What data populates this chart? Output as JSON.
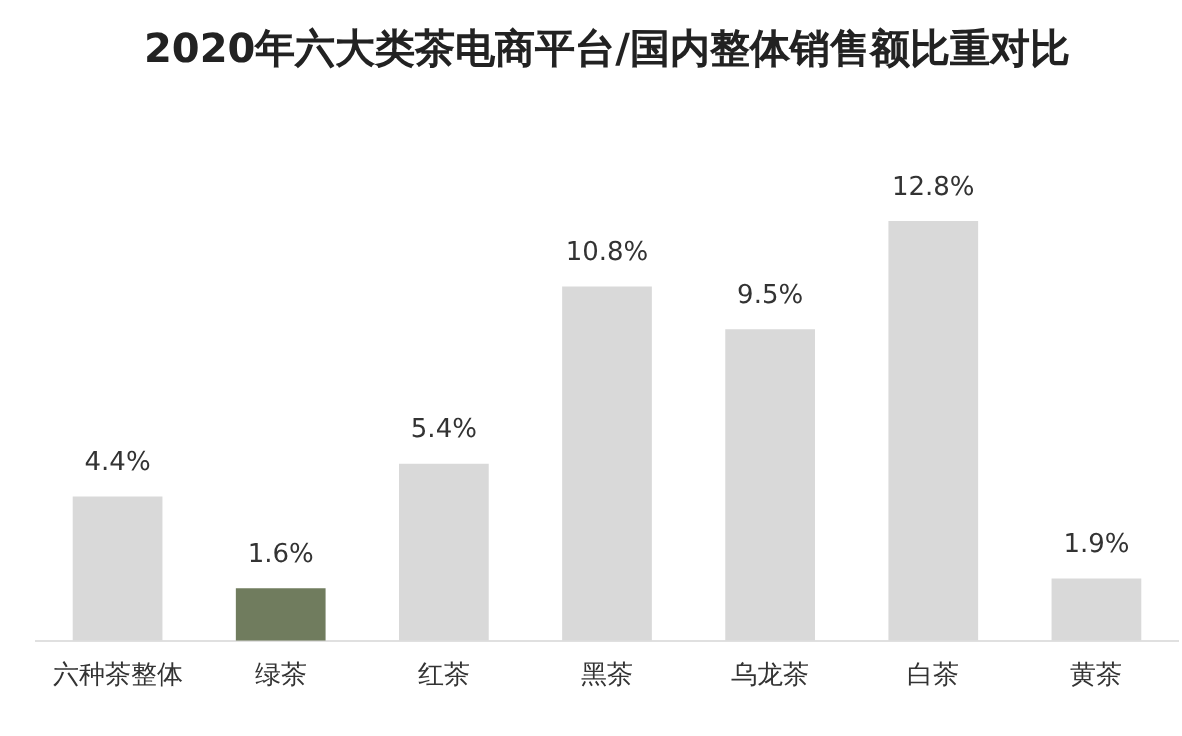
{
  "chart_data": {
    "type": "bar",
    "title": "2020年六大类茶电商平台/国内整体销售额比重对比",
    "categories": [
      "六种茶整体",
      "绿茶",
      "红茶",
      "黑茶",
      "乌龙茶",
      "白茶",
      "黄茶"
    ],
    "values": [
      4.4,
      1.6,
      5.4,
      10.8,
      9.5,
      12.8,
      1.9
    ],
    "colors": [
      "#d9d9d9",
      "#707c5e",
      "#d9d9d9",
      "#d9d9d9",
      "#d9d9d9",
      "#d9d9d9",
      "#d9d9d9"
    ],
    "value_labels": [
      "4.4%",
      "1.6%",
      "5.4%",
      "10.8%",
      "9.5%",
      "12.8%",
      "1.9%"
    ],
    "grid": false,
    "legend": false
  }
}
